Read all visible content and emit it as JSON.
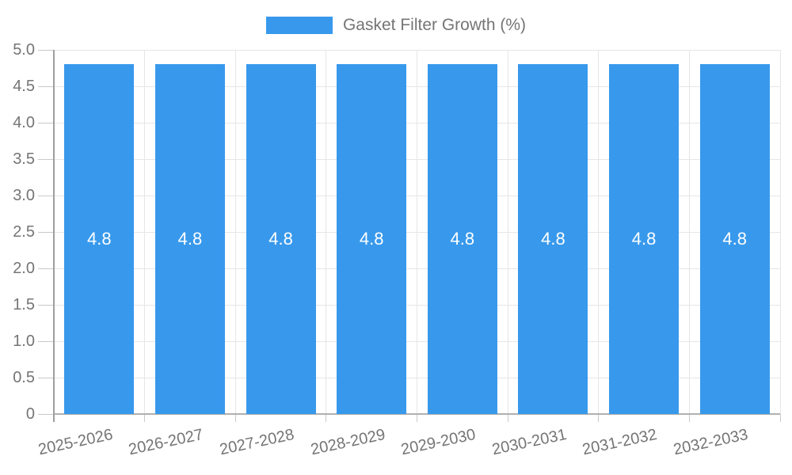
{
  "chart_data": {
    "type": "bar",
    "title": "",
    "legend": {
      "label": "Gasket Filter Growth (%)",
      "position": "top"
    },
    "categories": [
      "2025-2026",
      "2026-2027",
      "2027-2028",
      "2028-2029",
      "2029-2030",
      "2030-2031",
      "2031-2032",
      "2032-2033"
    ],
    "series": [
      {
        "name": "Gasket Filter Growth (%)",
        "values": [
          4.8,
          4.8,
          4.8,
          4.8,
          4.8,
          4.8,
          4.8,
          4.8
        ]
      }
    ],
    "bar_value_labels": [
      "4.8",
      "4.8",
      "4.8",
      "4.8",
      "4.8",
      "4.8",
      "4.8",
      "4.8"
    ],
    "xlabel": "",
    "ylabel": "",
    "ylim": [
      0,
      5
    ],
    "ytick_step": 0.5,
    "ytick_labels": [
      "0",
      "0.5",
      "1.0",
      "1.5",
      "2.0",
      "2.5",
      "3.0",
      "3.5",
      "4.0",
      "4.5",
      "5.0"
    ],
    "grid": true,
    "colors": {
      "bar": "#3899EC",
      "axis_text": "#757575",
      "legend_text": "#757575",
      "grid_line": "#e6e6e6",
      "axis_line": "#9e9e9e",
      "baseline": "#b0b0b0",
      "tick_line": "#c9c9c9",
      "value_text": "#ffffff",
      "background": "#ffffff"
    }
  }
}
